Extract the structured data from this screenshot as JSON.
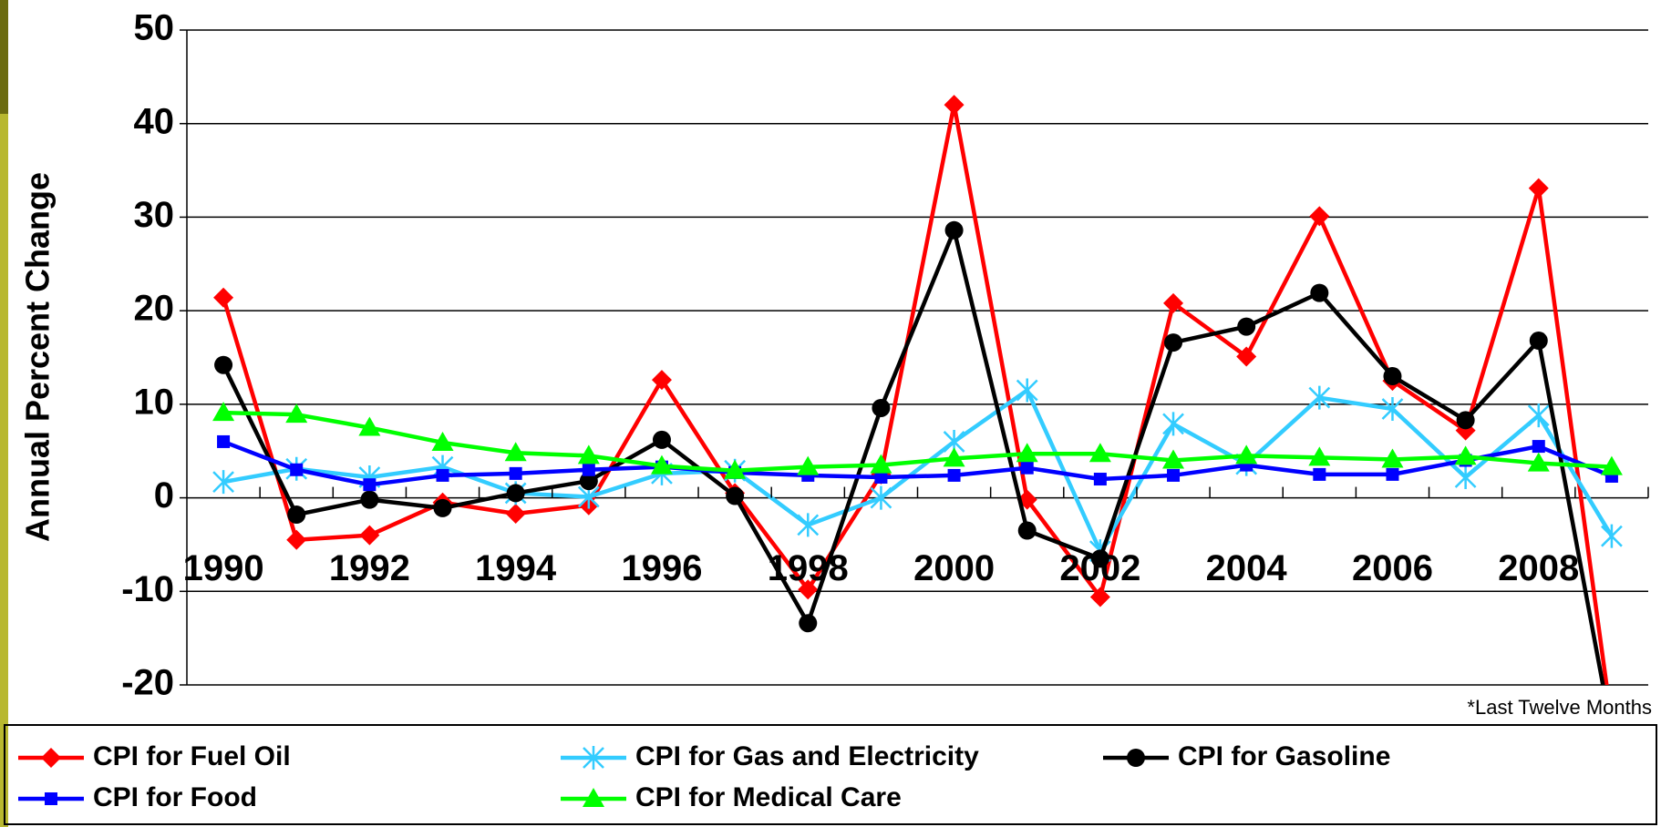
{
  "chart_data": {
    "type": "line",
    "y_label": "Annual Percent Change",
    "annotation": "*Last Twelve Months",
    "x": [
      1990,
      1991,
      1992,
      1993,
      1994,
      1995,
      1996,
      1997,
      1998,
      1999,
      2000,
      2001,
      2002,
      2003,
      2004,
      2005,
      2006,
      2007,
      2008,
      2009
    ],
    "xlim": [
      1989.5,
      2009.5
    ],
    "xticks": [
      1990,
      1992,
      1994,
      1996,
      1998,
      2000,
      2002,
      2004,
      2006,
      2008
    ],
    "ylim": [
      -20,
      50
    ],
    "yticks": [
      -20,
      -10,
      0,
      10,
      20,
      30,
      40,
      50
    ],
    "grid": true,
    "legend": "bottom",
    "series": [
      {
        "name": "CPI for Fuel Oil",
        "color": "#ff0000",
        "marker": "diamond",
        "values": [
          21.4,
          -4.5,
          -4.0,
          -0.5,
          -1.7,
          -0.8,
          12.6,
          0.5,
          -9.8,
          2.5,
          42.0,
          -0.2,
          -10.6,
          20.8,
          15.1,
          30.1,
          12.5,
          7.2,
          33.1,
          -24.0
        ]
      },
      {
        "name": "CPI for Gas and Electricity",
        "color": "#33ccff",
        "marker": "asterisk",
        "values": [
          1.7,
          3.1,
          2.2,
          3.3,
          0.5,
          0.1,
          2.6,
          2.9,
          -2.9,
          0.0,
          6.0,
          11.5,
          -5.7,
          7.9,
          3.6,
          10.7,
          9.5,
          2.2,
          8.8,
          -4.1
        ]
      },
      {
        "name": "CPI for Gasoline",
        "color": "#000000",
        "marker": "circle",
        "values": [
          14.2,
          -1.8,
          -0.2,
          -1.1,
          0.5,
          1.8,
          6.2,
          0.2,
          -13.4,
          9.6,
          28.6,
          -3.5,
          -6.5,
          16.6,
          18.3,
          21.9,
          13.0,
          8.3,
          16.8,
          -25.0
        ]
      },
      {
        "name": "CPI for Food",
        "color": "#0000ff",
        "marker": "square",
        "values": [
          6.0,
          3.0,
          1.4,
          2.4,
          2.6,
          3.0,
          3.3,
          2.7,
          2.4,
          2.2,
          2.4,
          3.2,
          2.0,
          2.4,
          3.5,
          2.5,
          2.5,
          4.0,
          5.5,
          2.3
        ]
      },
      {
        "name": "CPI for Medical Care",
        "color": "#00ff00",
        "marker": "triangle",
        "values": [
          9.1,
          8.9,
          7.5,
          5.9,
          4.8,
          4.5,
          3.4,
          2.9,
          3.3,
          3.5,
          4.2,
          4.7,
          4.7,
          4.0,
          4.5,
          4.3,
          4.1,
          4.4,
          3.7,
          3.3
        ]
      }
    ]
  }
}
